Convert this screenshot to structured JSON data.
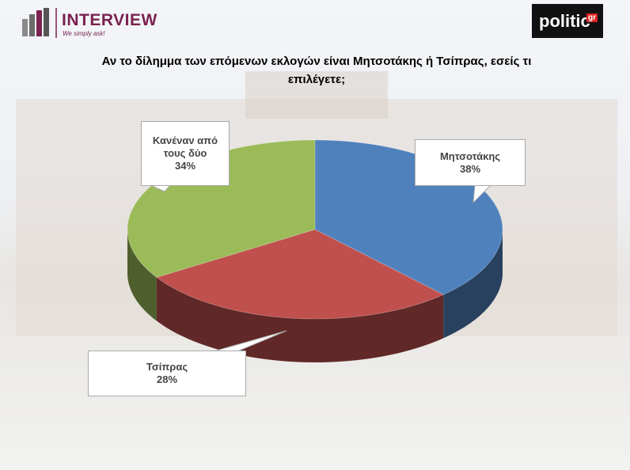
{
  "header": {
    "brand": "INTERVIEW",
    "tagline": "We simply ask!",
    "partner": "politic",
    "partner_suffix": "gr"
  },
  "chart_data": {
    "type": "pie3d",
    "title": "Αν το δίλημμα των επόμενων εκλογών είναι Μητσοτάκης ή Τσίπρας, εσείς τι επιλέγετε;",
    "categories": [
      "Μητσοτάκης",
      "Τσίπρας",
      "Κανέναν από τους δύο"
    ],
    "values": [
      38,
      28,
      34
    ],
    "value_labels": [
      "38%",
      "28%",
      "34%"
    ],
    "colors": [
      "#4f81bd",
      "#c0504d",
      "#9bbb59"
    ]
  }
}
